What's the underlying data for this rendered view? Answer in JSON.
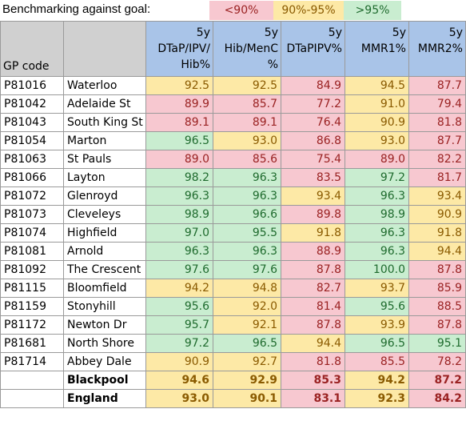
{
  "legend": {
    "title": "Benchmarking against goal:",
    "items": [
      {
        "label": "<90%",
        "color": "#f7c8d0",
        "text_color": "#9a2222"
      },
      {
        "label": "90%-95%",
        "color": "#fde9a6",
        "text_color": "#8a5a00"
      },
      {
        "label": ">95%",
        "color": "#c9edd0",
        "text_color": "#1f6b2e"
      }
    ]
  },
  "table": {
    "header": {
      "gp_code": "GP code",
      "name": "",
      "columns": [
        {
          "line1": "5y",
          "line2": "DTaP/IPV/",
          "line3": "Hib%"
        },
        {
          "line1": "5y",
          "line2": "Hib/MenC",
          "line3": "%"
        },
        {
          "line1": "5y",
          "line2": "DTaPIPV%",
          "line3": ""
        },
        {
          "line1": "5y",
          "line2": "MMR1%",
          "line3": ""
        },
        {
          "line1": "5y",
          "line2": "MMR2%",
          "line3": ""
        }
      ]
    },
    "rows": [
      {
        "code": "P81016",
        "name": "Waterloo",
        "values": [
          "92.5",
          "92.5",
          "84.9",
          "94.5",
          "87.7"
        ]
      },
      {
        "code": "P81042",
        "name": "Adelaide St",
        "values": [
          "89.9",
          "85.7",
          "77.2",
          "91.0",
          "79.4"
        ]
      },
      {
        "code": "P81043",
        "name": "South King St",
        "values": [
          "89.1",
          "89.1",
          "76.4",
          "90.9",
          "81.8"
        ]
      },
      {
        "code": "P81054",
        "name": "Marton",
        "values": [
          "96.5",
          "93.0",
          "86.8",
          "93.0",
          "87.7"
        ]
      },
      {
        "code": "P81063",
        "name": "St Pauls",
        "values": [
          "89.0",
          "85.6",
          "75.4",
          "89.0",
          "82.2"
        ]
      },
      {
        "code": "P81066",
        "name": "Layton",
        "values": [
          "98.2",
          "96.3",
          "83.5",
          "97.2",
          "81.7"
        ]
      },
      {
        "code": "P81072",
        "name": "Glenroyd",
        "values": [
          "96.3",
          "96.3",
          "93.4",
          "96.3",
          "93.4"
        ]
      },
      {
        "code": "P81073",
        "name": "Cleveleys",
        "values": [
          "98.9",
          "96.6",
          "89.8",
          "98.9",
          "90.9"
        ]
      },
      {
        "code": "P81074",
        "name": "Highfield",
        "values": [
          "97.0",
          "95.5",
          "91.8",
          "96.3",
          "91.8"
        ]
      },
      {
        "code": "P81081",
        "name": "Arnold",
        "values": [
          "96.3",
          "96.3",
          "88.9",
          "96.3",
          "94.4"
        ]
      },
      {
        "code": "P81092",
        "name": "The Crescent",
        "values": [
          "97.6",
          "97.6",
          "87.8",
          "100.0",
          "87.8"
        ]
      },
      {
        "code": "P81115",
        "name": "Bloomfield",
        "values": [
          "94.2",
          "94.8",
          "82.7",
          "93.7",
          "85.9"
        ]
      },
      {
        "code": "P81159",
        "name": "Stonyhill",
        "values": [
          "95.6",
          "92.0",
          "81.4",
          "95.6",
          "88.5"
        ]
      },
      {
        "code": "P81172",
        "name": "Newton Dr",
        "values": [
          "95.7",
          "92.1",
          "87.8",
          "93.9",
          "87.8"
        ]
      },
      {
        "code": "P81681",
        "name": "North Shore",
        "values": [
          "97.2",
          "96.5",
          "94.4",
          "96.5",
          "95.1"
        ]
      },
      {
        "code": "P81714",
        "name": "Abbey Dale",
        "values": [
          "90.9",
          "92.7",
          "81.8",
          "85.5",
          "78.2"
        ]
      }
    ],
    "summary": [
      {
        "code": "",
        "name": "Blackpool",
        "values": [
          "94.6",
          "92.9",
          "85.3",
          "94.2",
          "87.2"
        ]
      },
      {
        "code": "",
        "name": "England",
        "values": [
          "93.0",
          "90.1",
          "83.1",
          "92.3",
          "84.2"
        ]
      }
    ]
  }
}
